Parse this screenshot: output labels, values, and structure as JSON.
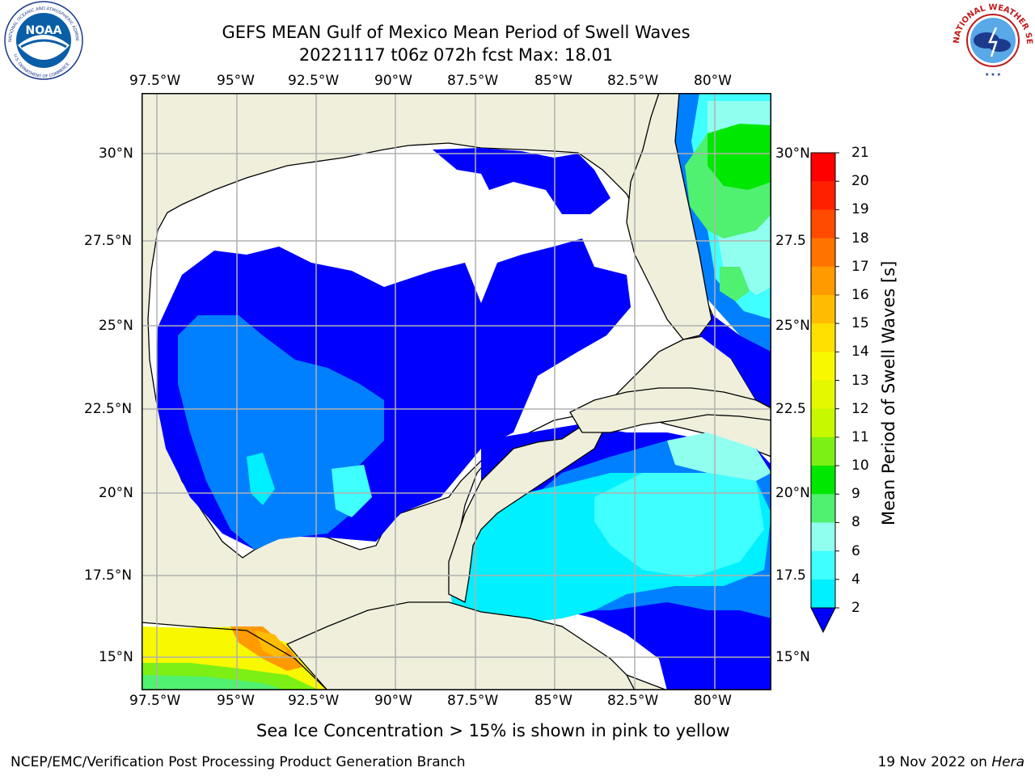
{
  "title": {
    "line1": "GEFS MEAN Gulf of Mexico Mean Period of Swell Waves",
    "line2": "20221117 t06z 072h fcst   Max: 18.01"
  },
  "map": {
    "lon_labels_top": [
      "97.5°W",
      "95°W",
      "92.5°W",
      "90°W",
      "87.5°W",
      "85°W",
      "82.5°W",
      "80°W"
    ],
    "lon_labels_bottom": [
      "97.5°W",
      "95°W",
      "92.5°W",
      "90°W",
      "87.5°W",
      "85°W",
      "82.5°W",
      "80°W"
    ],
    "lat_labels_left": [
      "30°N",
      "27.5°N",
      "25°N",
      "22.5°N",
      "20°N",
      "17.5°N",
      "15°N"
    ],
    "lat_labels_right": [
      "30°N",
      "27.5",
      "25°N",
      "22.5",
      "20°N",
      "17.5",
      "15°N"
    ],
    "land_color": "#efefdc",
    "grid_color": "#b0b0b0"
  },
  "colorbar": {
    "label": "Mean Period of Swell Waves [s]",
    "ticks": [
      "21",
      "20",
      "19",
      "18",
      "17",
      "16",
      "15",
      "14",
      "13",
      "12",
      "11",
      "10",
      "9",
      "8",
      "6",
      "4",
      "2"
    ],
    "colors": [
      "#ff0000",
      "#ff2000",
      "#ff4a00",
      "#ff7400",
      "#ff9a00",
      "#ffbc00",
      "#ffe000",
      "#f8f800",
      "#e4f800",
      "#c6f800",
      "#7cf014",
      "#00e800",
      "#50f070",
      "#90fff0",
      "#40ffff",
      "#00f0ff",
      "#0080ff",
      "#0000ff"
    ],
    "extend_color": "#0000ff"
  },
  "caption": "Sea Ice Concentration > 15% is shown in pink to yellow",
  "footer": {
    "left": "NCEP/EMC/Verification Post Processing Product Generation Branch",
    "right_date": "19 Nov 2022 on ",
    "right_host": "Hera"
  },
  "logos": {
    "noaa_text": "NOAA",
    "noaa_ring": "NATIONAL OCEANIC AND ATMOSPHERIC ADMINISTRATION",
    "noaa_ring_bottom": "U.S. DEPARTMENT OF COMMERCE",
    "nws_ring": "NATIONAL WEATHER SERVICE"
  }
}
